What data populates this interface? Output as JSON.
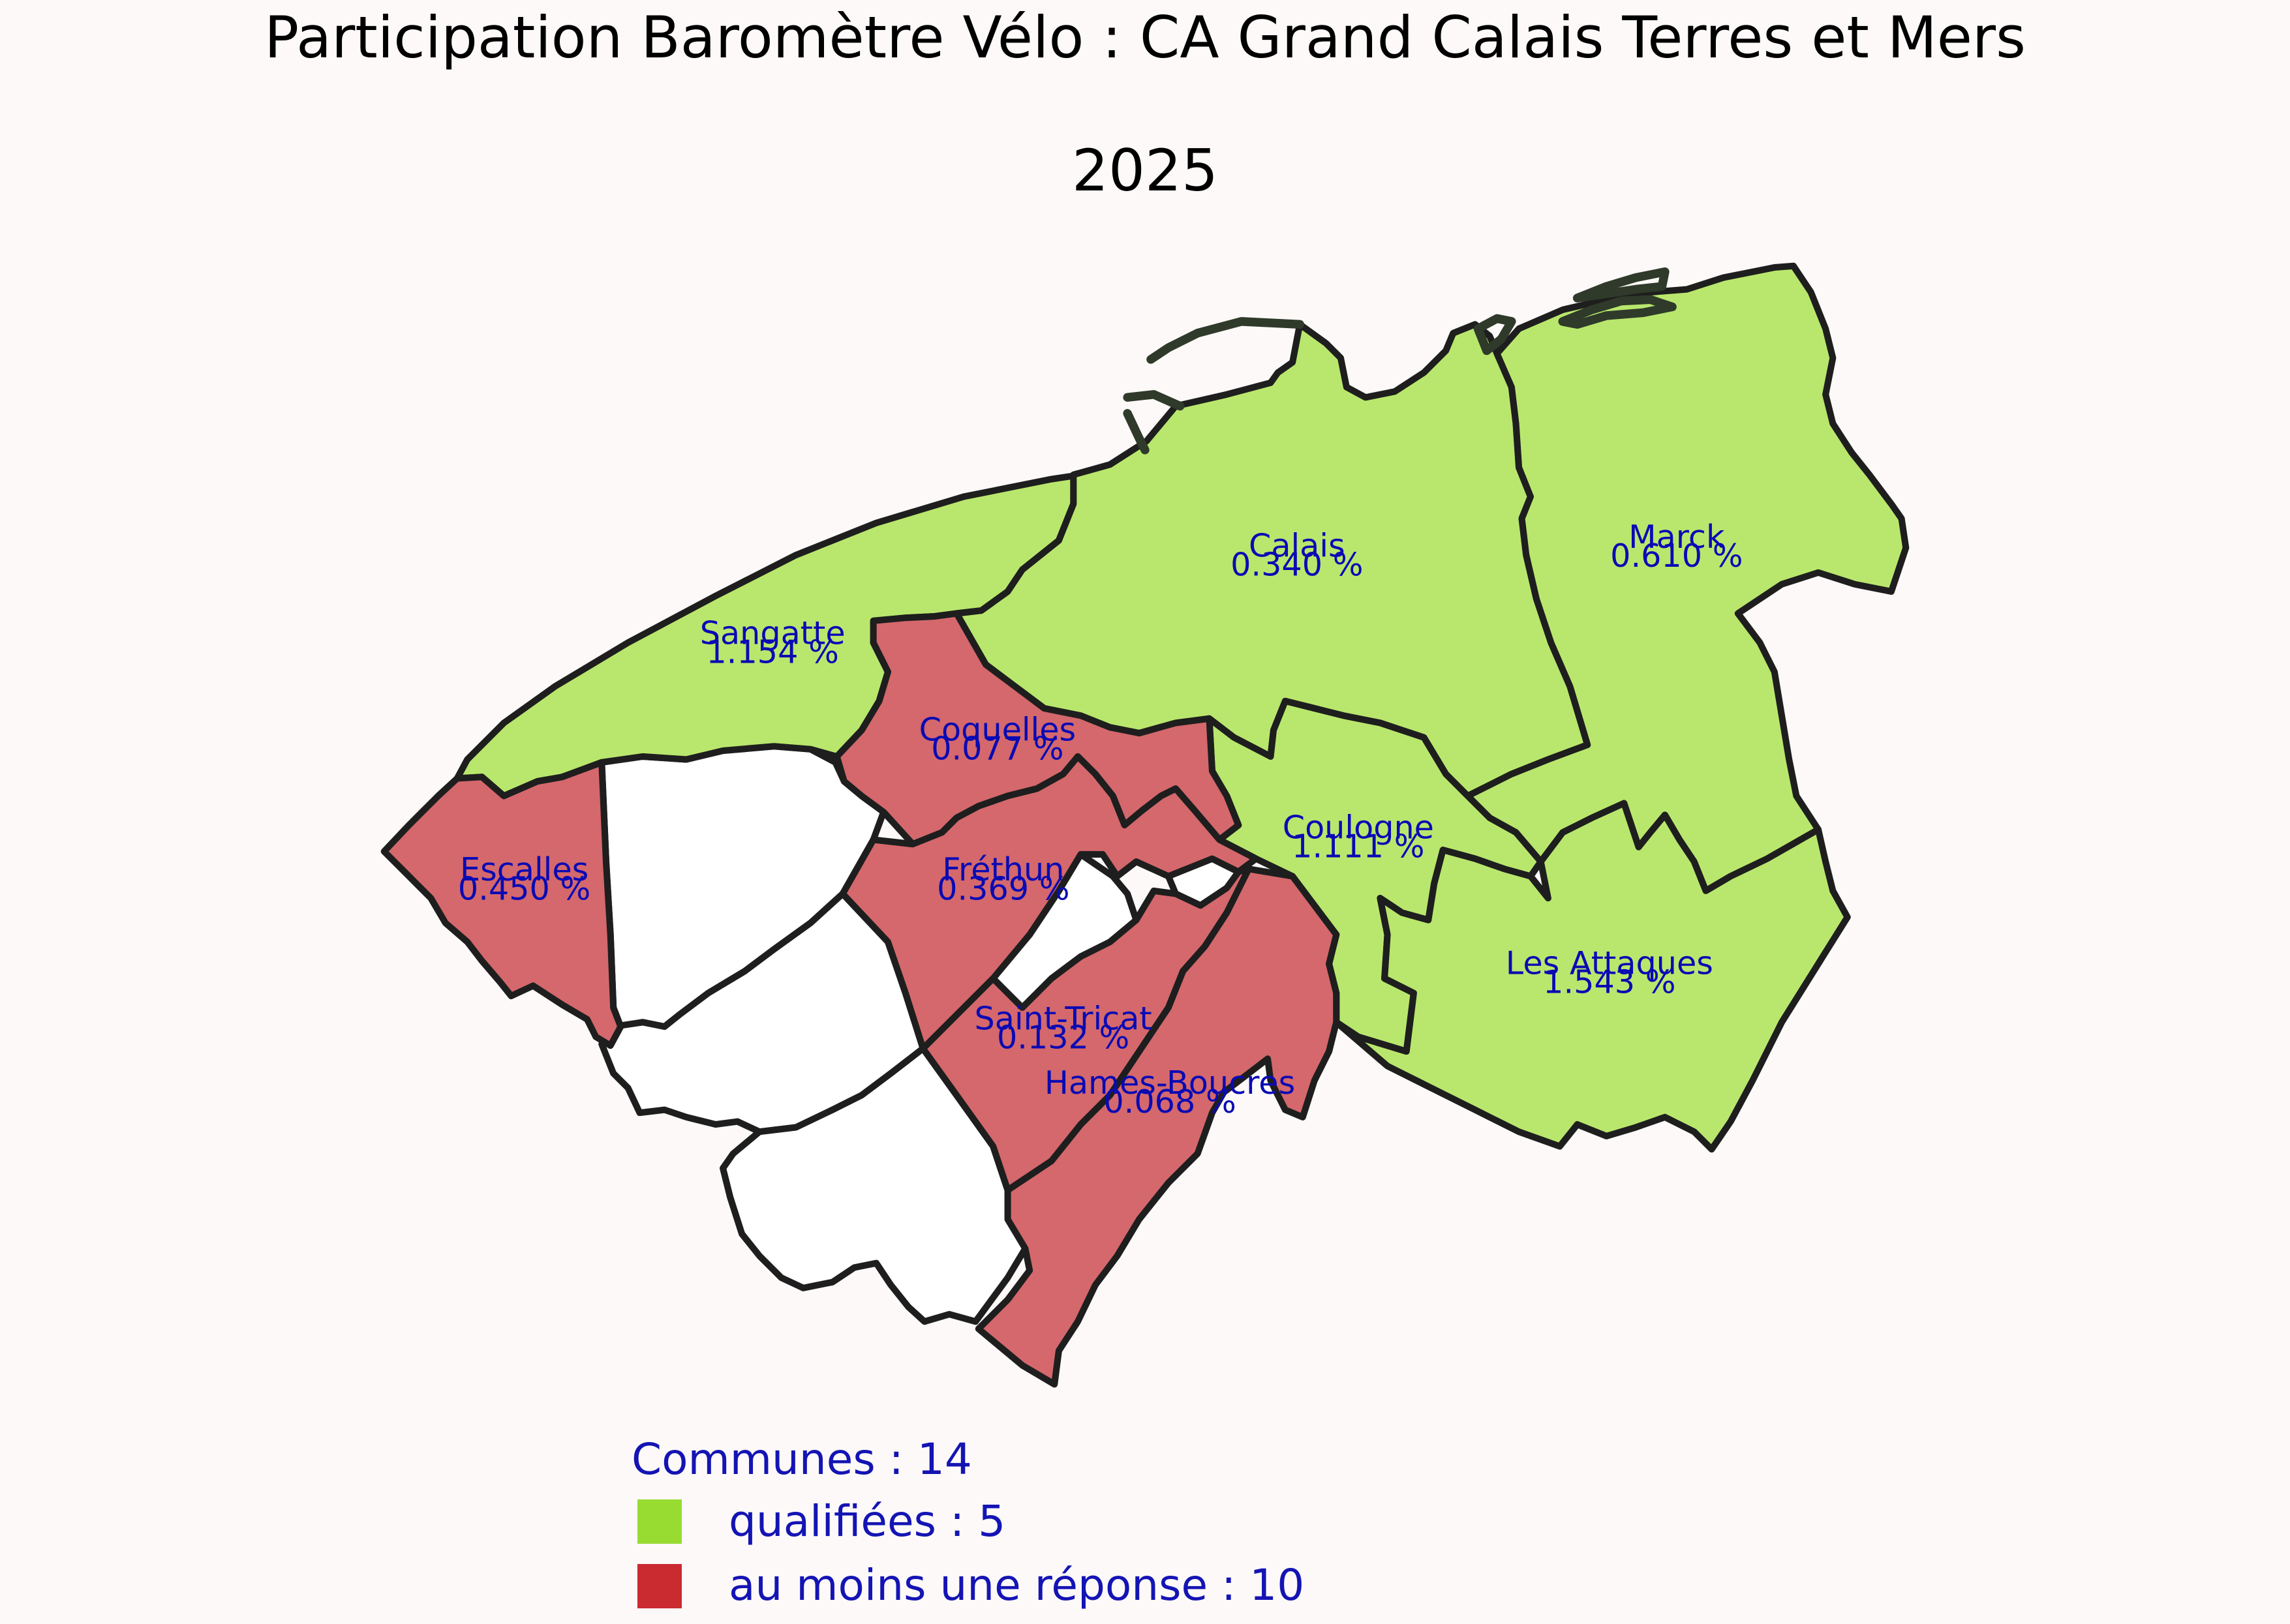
{
  "title": {
    "line1": "Participation Baromètre Vélo : CA Grand Calais Terres et Mers",
    "line2": "2025"
  },
  "colors": {
    "qualified": "#b9e76d",
    "partial": "#d4686c",
    "none": "#ffffff",
    "legend_qualified": "#98dc32",
    "legend_partial": "#c92b30",
    "label_text": "#0a0ab4"
  },
  "communes": [
    {
      "name": "Calais",
      "rate": "0.340 %",
      "status": "qualified"
    },
    {
      "name": "Marck",
      "rate": "0.610 %",
      "status": "qualified"
    },
    {
      "name": "Sangatte",
      "rate": "1.154 %",
      "status": "qualified"
    },
    {
      "name": "Coulogne",
      "rate": "1.111 %",
      "status": "qualified"
    },
    {
      "name": "Les Attaques",
      "rate": "1.543 %",
      "status": "qualified"
    },
    {
      "name": "Coquelles",
      "rate": "0.077 %",
      "status": "partial"
    },
    {
      "name": "Escalles",
      "rate": "0.450 %",
      "status": "partial"
    },
    {
      "name": "Fréthun",
      "rate": "0.369 %",
      "status": "partial"
    },
    {
      "name": "Saint-Tricat",
      "rate": "0.132 %",
      "status": "partial"
    },
    {
      "name": "Hames-Boucres",
      "rate": "0.068 %",
      "status": "partial"
    }
  ],
  "legend": {
    "total": "Communes : 14",
    "qualified": "qualifiées : 5",
    "partial": "au moins une réponse : 10"
  }
}
